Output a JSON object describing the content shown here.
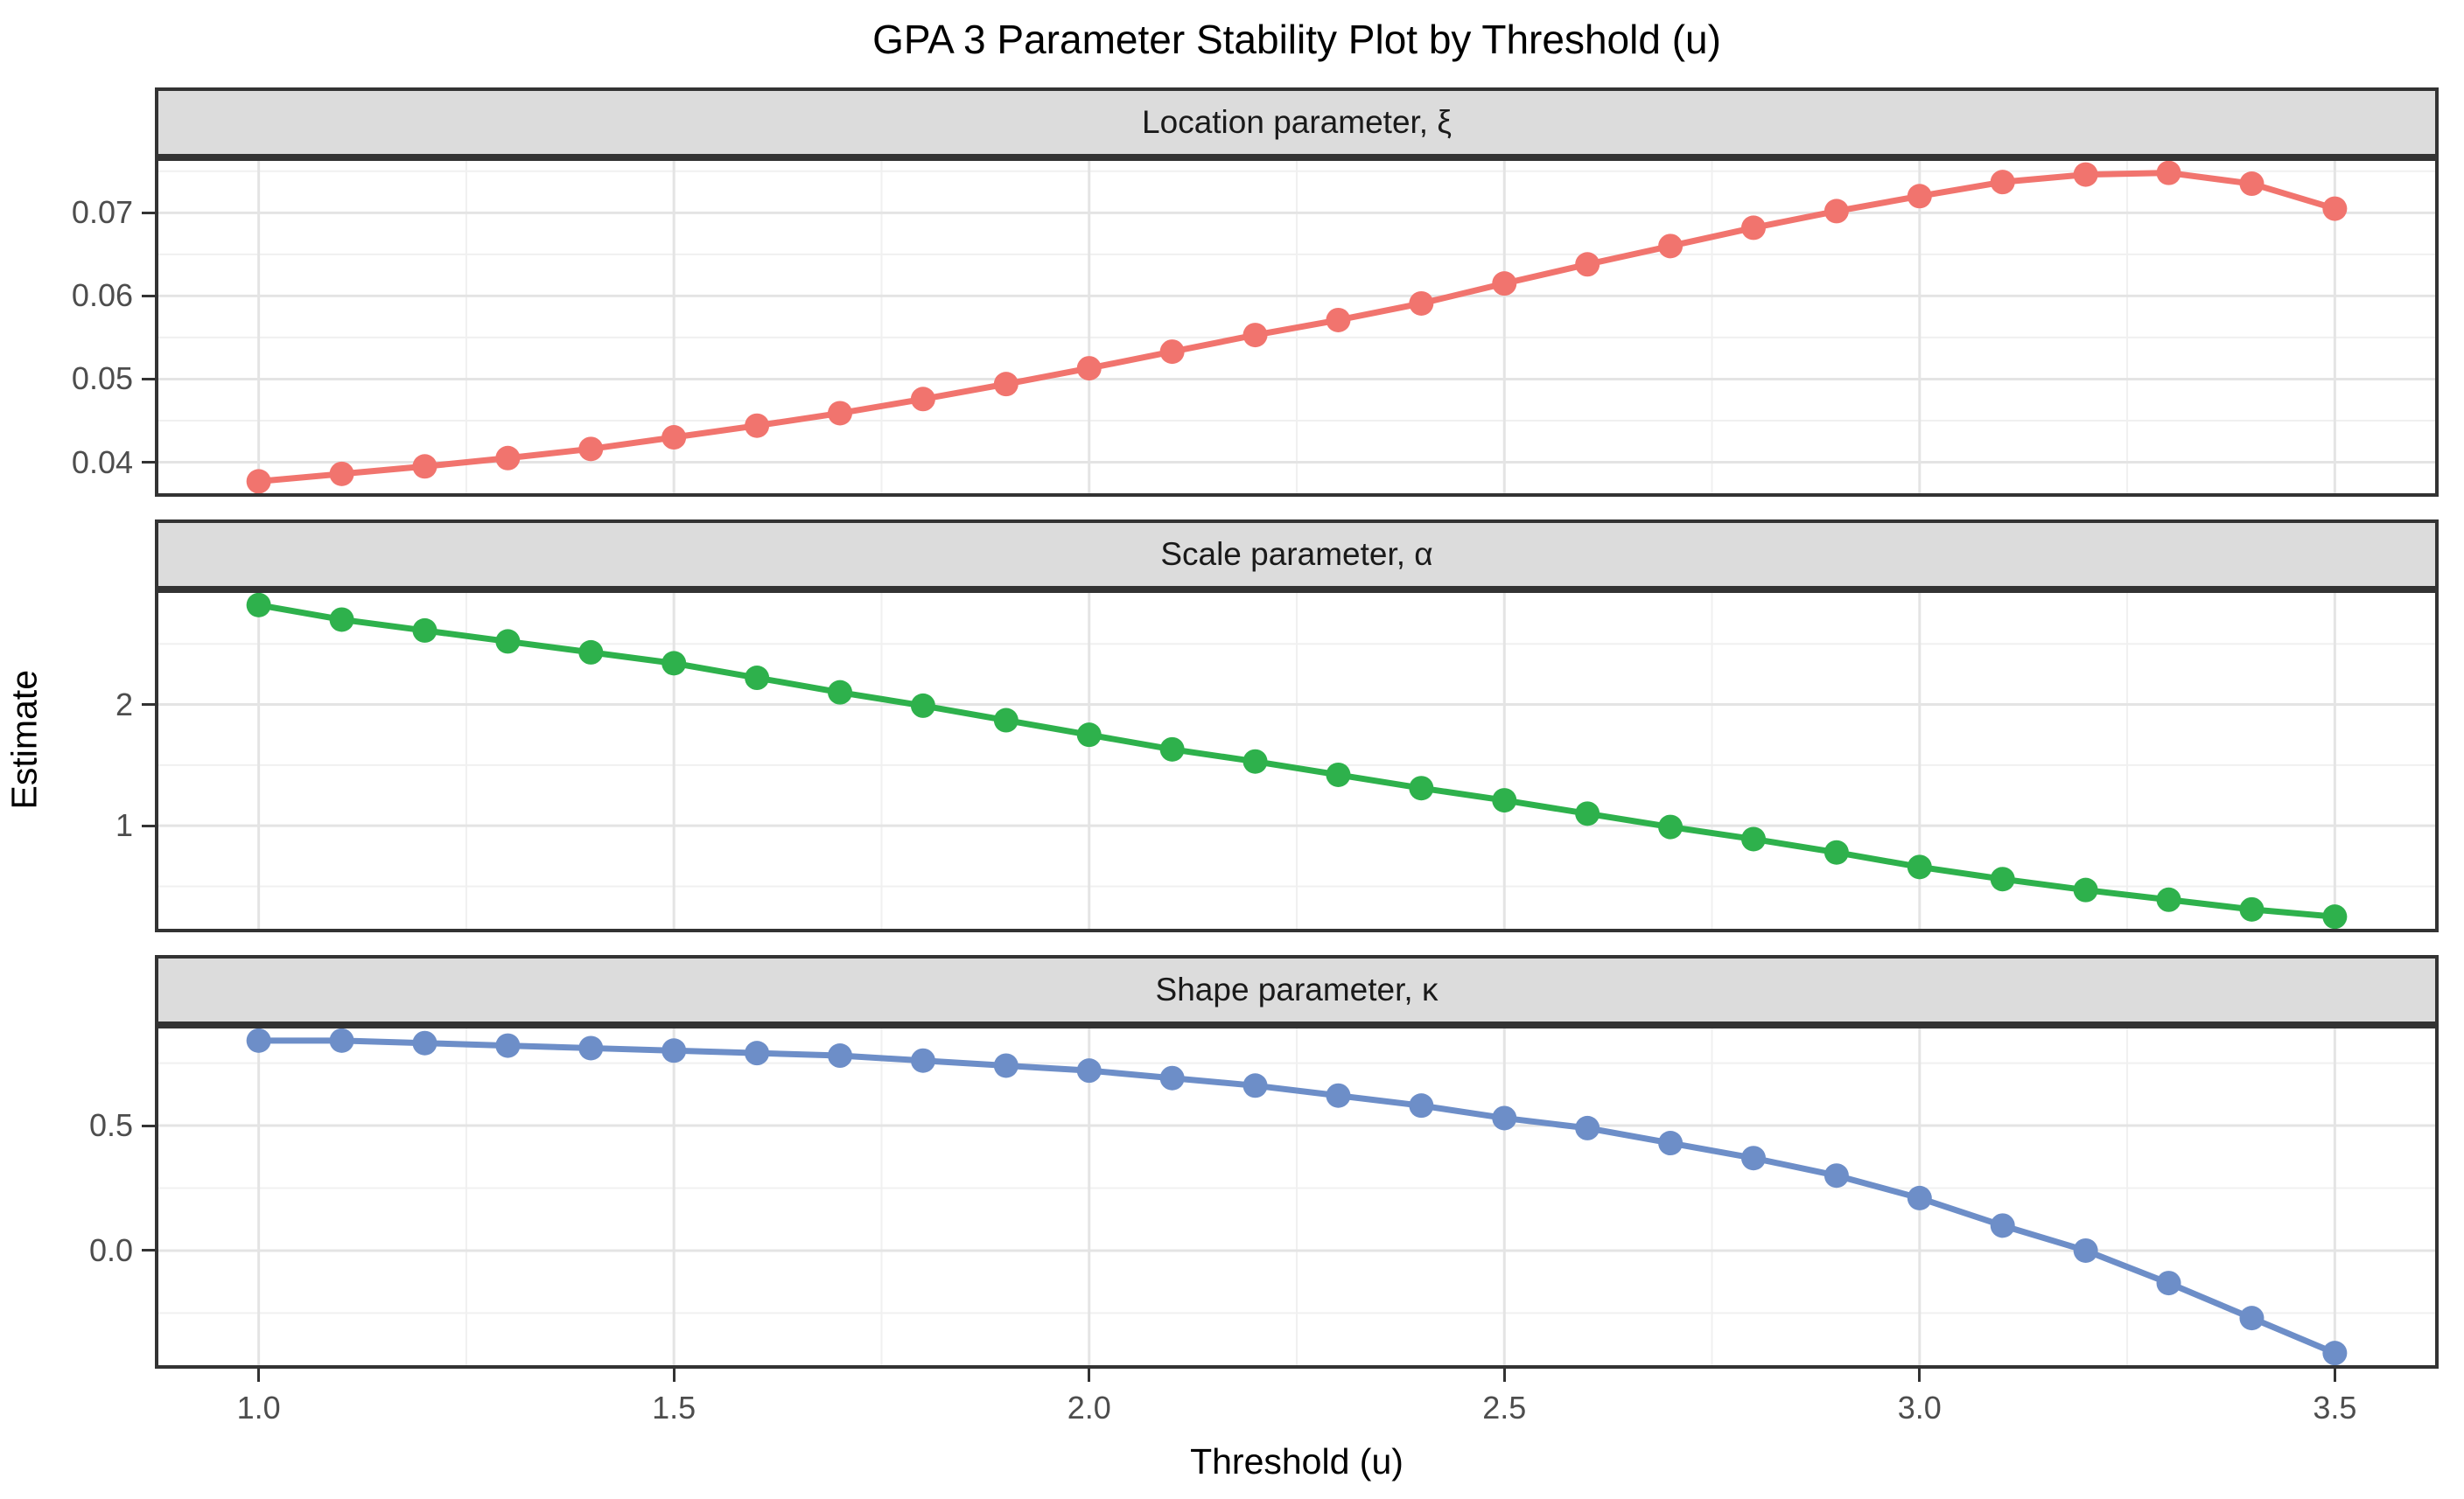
{
  "title": "GPA 3 Parameter Stability Plot by Threshold (u)",
  "chart_data": {
    "type": "line",
    "title": "GPA 3 Parameter Stability Plot by Threshold (u)",
    "xlabel": "Threshold (u)",
    "ylabel": "Estimate",
    "legend": "none",
    "grid": "on",
    "xlim": [
      0.875,
      3.625
    ],
    "x_ticks": [
      {
        "v": 1.0,
        "label": "1.0"
      },
      {
        "v": 1.5,
        "label": "1.5"
      },
      {
        "v": 2.0,
        "label": "2.0"
      },
      {
        "v": 2.5,
        "label": "2.5"
      },
      {
        "v": 3.0,
        "label": "3.0"
      },
      {
        "v": 3.5,
        "label": "3.5"
      }
    ],
    "x_minor": [
      1.25,
      1.75,
      2.25,
      2.75,
      3.25
    ],
    "x": [
      1.0,
      1.1,
      1.2,
      1.3,
      1.4,
      1.5,
      1.6,
      1.7,
      1.8,
      1.9,
      2.0,
      2.1,
      2.2,
      2.3,
      2.4,
      2.5,
      2.6,
      2.7,
      2.8,
      2.9,
      3.0,
      3.1,
      3.2,
      3.3,
      3.4,
      3.5
    ],
    "facets": [
      {
        "label": "Location parameter,  ξ",
        "series_name": "Location parameter (xi)",
        "color": "#F1746E",
        "ylim": [
          0.03585,
          0.07666
        ],
        "y_ticks": [
          {
            "v": 0.04,
            "label": "0.04"
          },
          {
            "v": 0.05,
            "label": "0.05"
          },
          {
            "v": 0.06,
            "label": "0.06"
          },
          {
            "v": 0.07,
            "label": "0.07"
          }
        ],
        "y_minor": [
          0.045,
          0.055,
          0.065,
          0.075
        ],
        "values": [
          0.0377,
          0.0386,
          0.0395,
          0.0405,
          0.0416,
          0.043,
          0.0444,
          0.0459,
          0.0476,
          0.0494,
          0.0513,
          0.0533,
          0.0553,
          0.0571,
          0.0591,
          0.0615,
          0.0638,
          0.066,
          0.0682,
          0.0702,
          0.072,
          0.0737,
          0.0746,
          0.0748,
          0.0735,
          0.0705
        ]
      },
      {
        "label": "Scale parameter,  α",
        "series_name": "Scale parameter (alpha)",
        "color": "#2EB14C",
        "ylim": [
          0.1215,
          2.9485
        ],
        "y_ticks": [
          {
            "v": 1,
            "label": "1"
          },
          {
            "v": 2,
            "label": "2"
          }
        ],
        "y_minor": [
          0.5,
          1.5,
          2.5
        ],
        "values": [
          2.82,
          2.7,
          2.61,
          2.52,
          2.43,
          2.34,
          2.22,
          2.1,
          1.99,
          1.87,
          1.75,
          1.63,
          1.53,
          1.42,
          1.31,
          1.21,
          1.1,
          0.99,
          0.89,
          0.78,
          0.66,
          0.56,
          0.47,
          0.39,
          0.31,
          0.25
        ]
      },
      {
        "label": "Shape parameter,  κ",
        "series_name": "Shape parameter (kappa)",
        "color": "#6D8EC8",
        "ylim": [
          -0.4725,
          0.9025
        ],
        "y_ticks": [
          {
            "v": 0.0,
            "label": "0.0"
          },
          {
            "v": 0.5,
            "label": "0.5"
          }
        ],
        "y_minor": [
          -0.25,
          0.25,
          0.75
        ],
        "values": [
          0.84,
          0.84,
          0.83,
          0.82,
          0.81,
          0.8,
          0.79,
          0.78,
          0.76,
          0.74,
          0.72,
          0.69,
          0.66,
          0.62,
          0.58,
          0.53,
          0.49,
          0.43,
          0.37,
          0.3,
          0.21,
          0.1,
          0.0,
          -0.13,
          -0.27,
          -0.41
        ]
      }
    ],
    "colors": {
      "grid_major": "#E4E4E4",
      "grid_minor": "#F0F0F0",
      "panel_border": "#333333",
      "strip_bg": "#DCDCDC",
      "tick_text": "#4D4D4D"
    }
  }
}
